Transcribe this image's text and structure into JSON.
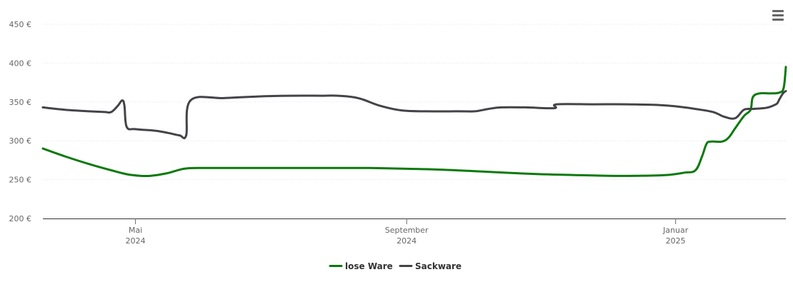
{
  "menu_icon": "hamburger-menu-icon",
  "chart_data": {
    "type": "line",
    "y_unit": "€",
    "y_ticks": [
      "200 €",
      "250 €",
      "300 €",
      "350 €",
      "400 €",
      "450 €"
    ],
    "ylim": [
      200,
      450
    ],
    "xlim": [
      "2024-03-20",
      "2025-02-20"
    ],
    "x_ticks": [
      {
        "date": "2024-05-01",
        "month": "Mai",
        "year": "2024"
      },
      {
        "date": "2024-09-01",
        "month": "September",
        "year": "2024"
      },
      {
        "date": "2025-01-01",
        "month": "Januar",
        "year": "2025"
      }
    ],
    "grid": true,
    "legend_position": "bottom-center",
    "series": [
      {
        "name": "lose Ware",
        "color": "#0a7a0a",
        "points": [
          [
            "2024-03-20",
            290
          ],
          [
            "2024-03-30",
            280
          ],
          [
            "2024-04-10",
            270
          ],
          [
            "2024-04-20",
            262
          ],
          [
            "2024-04-27",
            257
          ],
          [
            "2024-05-03",
            255
          ],
          [
            "2024-05-08",
            255
          ],
          [
            "2024-05-15",
            258
          ],
          [
            "2024-05-23",
            264
          ],
          [
            "2024-05-30",
            265
          ],
          [
            "2024-06-15",
            265
          ],
          [
            "2024-07-01",
            265
          ],
          [
            "2024-07-15",
            265
          ],
          [
            "2024-08-01",
            265
          ],
          [
            "2024-08-15",
            265
          ],
          [
            "2024-09-01",
            264
          ],
          [
            "2024-09-15",
            263
          ],
          [
            "2024-10-01",
            261
          ],
          [
            "2024-10-15",
            259
          ],
          [
            "2024-11-01",
            257
          ],
          [
            "2024-11-15",
            256
          ],
          [
            "2024-12-01",
            255
          ],
          [
            "2024-12-15",
            255
          ],
          [
            "2024-12-28",
            256
          ],
          [
            "2025-01-05",
            259
          ],
          [
            "2025-01-10",
            262
          ],
          [
            "2025-01-13",
            280
          ],
          [
            "2025-01-15",
            296
          ],
          [
            "2025-01-17",
            299
          ],
          [
            "2025-01-22",
            299
          ],
          [
            "2025-01-25",
            304
          ],
          [
            "2025-01-28",
            316
          ],
          [
            "2025-02-01",
            332
          ],
          [
            "2025-02-04",
            340
          ],
          [
            "2025-02-05",
            356
          ],
          [
            "2025-02-08",
            361
          ],
          [
            "2025-02-13",
            361
          ],
          [
            "2025-02-17",
            362
          ],
          [
            "2025-02-19",
            368
          ],
          [
            "2025-02-20",
            395
          ]
        ]
      },
      {
        "name": "Sackware",
        "color": "#434348",
        "points": [
          [
            "2024-03-20",
            343
          ],
          [
            "2024-03-30",
            340
          ],
          [
            "2024-04-10",
            338
          ],
          [
            "2024-04-17",
            337
          ],
          [
            "2024-04-20",
            337
          ],
          [
            "2024-04-23",
            345
          ],
          [
            "2024-04-25",
            352
          ],
          [
            "2024-04-26",
            345
          ],
          [
            "2024-04-27",
            318
          ],
          [
            "2024-05-01",
            315
          ],
          [
            "2024-05-10",
            313
          ],
          [
            "2024-05-16",
            310
          ],
          [
            "2024-05-21",
            307
          ],
          [
            "2024-05-24",
            307
          ],
          [
            "2024-05-26",
            352
          ],
          [
            "2024-06-10",
            355
          ],
          [
            "2024-06-25",
            357
          ],
          [
            "2024-07-10",
            358
          ],
          [
            "2024-07-25",
            358
          ],
          [
            "2024-08-01",
            358
          ],
          [
            "2024-08-10",
            355
          ],
          [
            "2024-08-20",
            345
          ],
          [
            "2024-08-30",
            339
          ],
          [
            "2024-09-10",
            338
          ],
          [
            "2024-09-25",
            338
          ],
          [
            "2024-10-02",
            338
          ],
          [
            "2024-10-08",
            341
          ],
          [
            "2024-10-14",
            343
          ],
          [
            "2024-10-25",
            343
          ],
          [
            "2024-11-07",
            342
          ],
          [
            "2024-11-08",
            347
          ],
          [
            "2024-11-25",
            347
          ],
          [
            "2024-12-10",
            347
          ],
          [
            "2024-12-25",
            346
          ],
          [
            "2025-01-02",
            344
          ],
          [
            "2025-01-10",
            341
          ],
          [
            "2025-01-18",
            337
          ],
          [
            "2025-01-23",
            331
          ],
          [
            "2025-01-28",
            329
          ],
          [
            "2025-02-01",
            340
          ],
          [
            "2025-02-05",
            341
          ],
          [
            "2025-02-10",
            342
          ],
          [
            "2025-02-12",
            343
          ],
          [
            "2025-02-14",
            345
          ],
          [
            "2025-02-16",
            348
          ],
          [
            "2025-02-17",
            353
          ],
          [
            "2025-02-18",
            358
          ],
          [
            "2025-02-19",
            362
          ],
          [
            "2025-02-20",
            364
          ]
        ]
      }
    ]
  }
}
